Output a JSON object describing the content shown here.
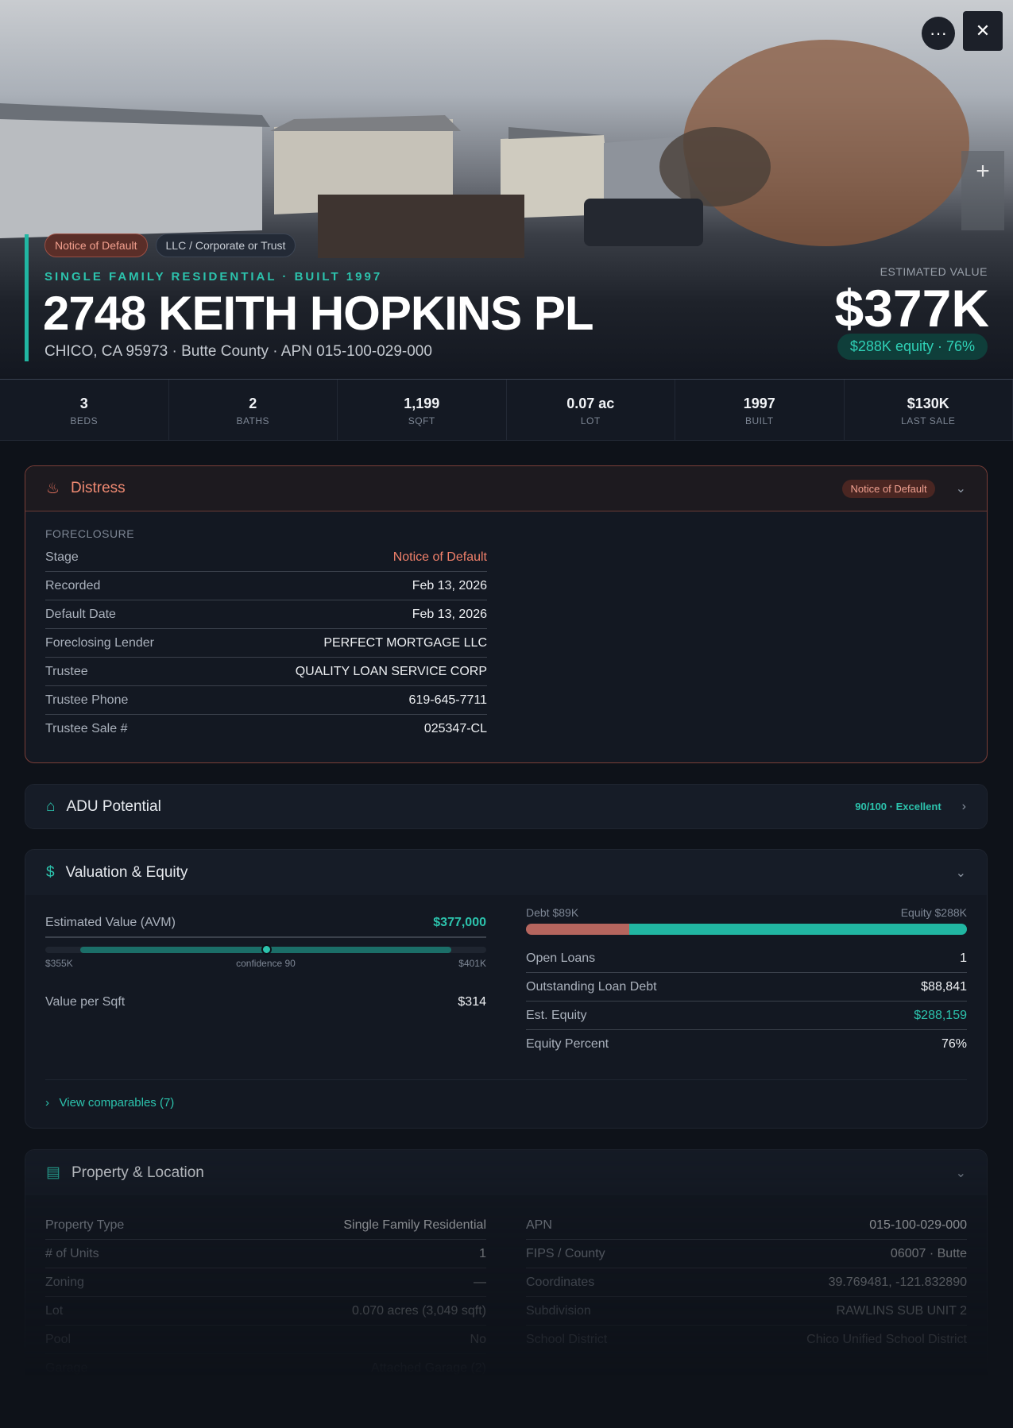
{
  "header": {
    "badges": [
      "Notice of Default",
      "LLC / Corporate or Trust"
    ],
    "subtitle": "SINGLE FAMILY RESIDENTIAL · BUILT 1997",
    "title": "2748 KEITH HOPKINS PL",
    "location": "CHICO, CA 95973 · Butte County · APN 015-100-029-000",
    "value_label": "ESTIMATED VALUE",
    "value": "$377K",
    "equity": "$288K equity · 76%"
  },
  "stats": [
    {
      "value": "3",
      "label": "BEDS"
    },
    {
      "value": "2",
      "label": "BATHS"
    },
    {
      "value": "1,199",
      "label": "SQFT"
    },
    {
      "value": "0.07 ac",
      "label": "LOT"
    },
    {
      "value": "1997",
      "label": "BUILT"
    },
    {
      "value": "$130K",
      "label": "LAST SALE"
    }
  ],
  "distress": {
    "title": "Distress",
    "badge": "Notice of Default",
    "section": "FORECLOSURE",
    "rows": [
      [
        "Stage",
        "Notice of Default"
      ],
      [
        "Recorded",
        "Feb 13, 2026"
      ],
      [
        "Default Date",
        "Feb 13, 2026"
      ],
      [
        "Foreclosing Lender",
        "PERFECT MORTGAGE LLC"
      ],
      [
        "Trustee",
        "QUALITY LOAN SERVICE CORP"
      ],
      [
        "Trustee Phone",
        "619-645-7711"
      ],
      [
        "Trustee Sale #",
        "025347-CL"
      ]
    ]
  },
  "adu": {
    "title": "ADU Potential",
    "score": "90/100 · Excellent"
  },
  "valuation": {
    "title": "Valuation & Equity",
    "avm_label": "Estimated Value (AVM)",
    "avm": "$377,000",
    "range_low": "$355K",
    "confidence": "confidence 90",
    "range_high": "$401K",
    "per_sqft_label": "Value per Sqft",
    "per_sqft": "$314",
    "debt_label": "Debt $89K",
    "equity_label": "Equity $288K",
    "rows": [
      [
        "Open Loans",
        "1"
      ],
      [
        "Outstanding Loan Debt",
        "$88,841"
      ],
      [
        "Est. Equity",
        "$288,159"
      ],
      [
        "Equity Percent",
        "76%"
      ]
    ],
    "link": "View comparables (7)"
  },
  "property": {
    "title": "Property & Location",
    "left": [
      [
        "Property Type",
        "Single Family Residential"
      ],
      [
        "# of Units",
        "1"
      ],
      [
        "Zoning",
        "—"
      ],
      [
        "Lot",
        "0.070 acres (3,049 sqft)"
      ],
      [
        "Pool",
        "No"
      ],
      [
        "Garage",
        "Attached Garage (2)"
      ]
    ],
    "right": [
      [
        "APN",
        "015-100-029-000"
      ],
      [
        "FIPS / County",
        "06007 · Butte"
      ],
      [
        "Coordinates",
        "39.769481, -121.832890"
      ],
      [
        "Subdivision",
        "RAWLINS SUB UNIT 2"
      ],
      [
        "School District",
        "Chico Unified School District"
      ]
    ]
  }
}
